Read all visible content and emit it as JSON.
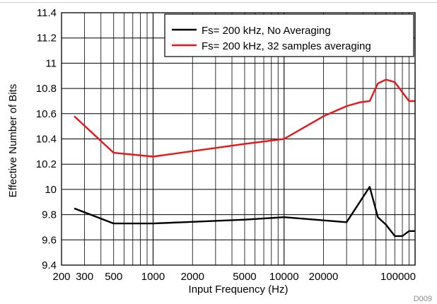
{
  "chart_data": {
    "type": "line",
    "title": "",
    "xlabel": "Input Frequency (Hz)",
    "ylabel": "Effective Number of Bits",
    "x_scale": "log",
    "xlim": [
      200,
      100000
    ],
    "ylim": [
      9.4,
      11.4
    ],
    "x_ticks": [
      200,
      300,
      500,
      1000,
      2000,
      5000,
      10000,
      20000,
      100000
    ],
    "x_tick_labels": [
      "200",
      "300",
      "500",
      "1000",
      "2000",
      "5000",
      "10000",
      "20000",
      "100000"
    ],
    "y_ticks": [
      9.4,
      9.6,
      9.8,
      10,
      10.2,
      10.4,
      10.6,
      10.8,
      11,
      11.2,
      11.4
    ],
    "y_tick_labels": [
      "9.4",
      "9.6",
      "9.8",
      "10",
      "10.2",
      "10.4",
      "10.6",
      "10.8",
      "11",
      "11.2",
      "11.4"
    ],
    "grid": true,
    "legend_position": "top-right",
    "series": [
      {
        "name": "Fs= 200 kHz, No Averaging",
        "color": "#000000",
        "x": [
          250,
          500,
          1000,
          5000,
          10000,
          30000,
          45000,
          52000,
          60000,
          70000,
          80000,
          90000,
          100000
        ],
        "y": [
          9.85,
          9.73,
          9.73,
          9.76,
          9.78,
          9.74,
          10.02,
          9.78,
          9.72,
          9.63,
          9.63,
          9.67,
          9.67
        ]
      },
      {
        "name": "Fs= 200 kHz, 32 samples averaging",
        "color": "#e8161b",
        "x": [
          250,
          500,
          1000,
          5000,
          10000,
          20000,
          30000,
          38000,
          45000,
          52000,
          60000,
          70000,
          80000,
          90000,
          100000
        ],
        "y": [
          10.58,
          10.29,
          10.26,
          10.36,
          10.4,
          10.58,
          10.66,
          10.69,
          10.7,
          10.84,
          10.87,
          10.85,
          10.77,
          10.7,
          10.7
        ]
      }
    ],
    "annotations": [
      "D009"
    ]
  }
}
